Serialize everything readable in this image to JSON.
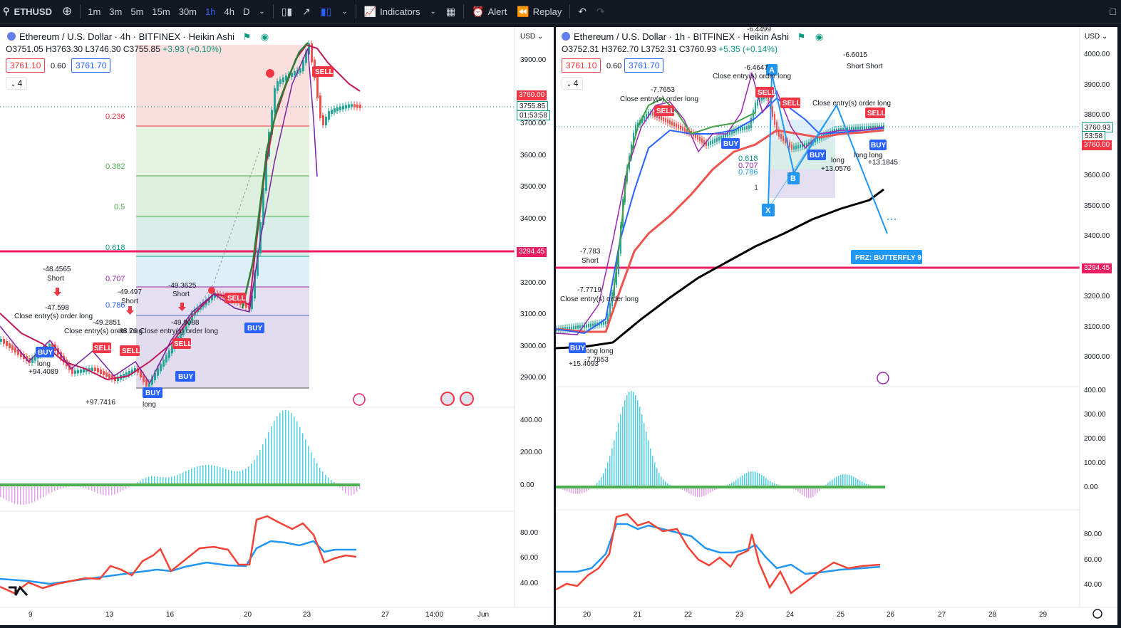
{
  "toolbar": {
    "symbol": "ETHUSD",
    "timeframes": [
      "1m",
      "3m",
      "5m",
      "15m",
      "30m",
      "1h",
      "4h",
      "D"
    ],
    "active_timeframe": "1h",
    "indicators_label": "Indicators",
    "alert_label": "Alert",
    "replay_label": "Replay"
  },
  "left_chart": {
    "title": "Ethereum / U.S. Dollar · 4h · BITFINEX · Heikin Ashi",
    "ohlc": {
      "o": "O3751.05",
      "h": "H3763.30",
      "l": "L3746.30",
      "c": "C3755.85",
      "change": "+3.93 (+0.10%)"
    },
    "sell_price": "3761.10",
    "spread": "0.60",
    "buy_price": "3761.70",
    "collapse_count": "4",
    "currency": "USD",
    "price_ticks": [
      "3900.00",
      "3700.00",
      "3600.00",
      "3500.00",
      "3400.00",
      "3200.00",
      "3100.00",
      "3000.00",
      "2900.00"
    ],
    "last_price_tag": "3760.00",
    "current_price_tag": "3755.85",
    "countdown": "01:53:58",
    "level_tag": "3294.45",
    "fib_levels": [
      "0.236",
      "0.382",
      "0.5",
      "0.618",
      "0.707",
      "0.786"
    ],
    "macd_ticks": [
      "400.00",
      "200.00",
      "0.00"
    ],
    "rsi_ticks": [
      "80.00",
      "60.00",
      "40.00"
    ],
    "time_ticks": [
      "9",
      "13",
      "16",
      "20",
      "23",
      "27",
      "14:00",
      "Jun"
    ],
    "annotations": [
      "-48.4565",
      "Short",
      "-47.598",
      "Close entry(s) order long",
      "-49.2851",
      "-48.76",
      "Close entry(s) order long",
      "-49.497",
      "Short",
      "-49.3625",
      "Short",
      "Close entry(s) order long",
      "-49.8088",
      "long",
      "+94.4089",
      "long",
      "+97.7416",
      "long",
      "SELL",
      "BUY",
      "BUY",
      "SELL",
      "BUY",
      "BUY",
      "SELL",
      "SELL",
      "SELL"
    ]
  },
  "right_chart": {
    "title": "Ethereum / U.S. Dollar · 1h · BITFINEX · Heikin Ashi",
    "ohlc": {
      "o": "O3752.31",
      "h": "H3762.70",
      "l": "L3752.31",
      "c": "C3760.93",
      "change": "+5.35 (+0.14%)"
    },
    "sell_price": "3761.10",
    "spread": "0.60",
    "buy_price": "3761.70",
    "collapse_count": "4",
    "currency": "USD",
    "price_ticks": [
      "4000.00",
      "3900.00",
      "3800.00",
      "3600.00",
      "3500.00",
      "3400.00",
      "3200.00",
      "3100.00",
      "3000.00"
    ],
    "current_price_tag": "3760.93",
    "countdown": "53:58",
    "last_price_tag": "3760.00",
    "level_tag": "3294.45",
    "prz_label": "PRZ: BUTTERFLY 9",
    "harmonic_points": [
      "X",
      "A",
      "B"
    ],
    "fib_levels": [
      "0.618",
      "0.707",
      "0.786",
      "1"
    ],
    "macd_ticks": [
      "400.00",
      "300.00",
      "200.00",
      "100.00",
      "0.00"
    ],
    "rsi_ticks": [
      "80.00",
      "60.00",
      "40.00"
    ],
    "time_ticks": [
      "20",
      "21",
      "22",
      "23",
      "24",
      "25",
      "26",
      "27",
      "28",
      "29"
    ],
    "annotations": [
      "-7.783",
      "Short",
      "-7.7653",
      "Close entry(s) order long",
      "-6.4647",
      "Close entry(s) order long",
      "-6.6015",
      "Short Short",
      "Close entry(s) order long",
      "-7.7719",
      "Close entry(s) order long",
      "+15.4093",
      "long long",
      "-7.7653",
      "long",
      "+13.0576",
      "long long",
      "+13.1845",
      "-6.4499",
      "SELL",
      "SELL",
      "SELL",
      "SELL",
      "BUY",
      "BUY",
      "BUY",
      "BUY"
    ]
  },
  "colors": {
    "red_level": "#e91e63",
    "buy_blue": "#2962ff",
    "sell_red": "#f23645",
    "ema_black": "#000000"
  }
}
